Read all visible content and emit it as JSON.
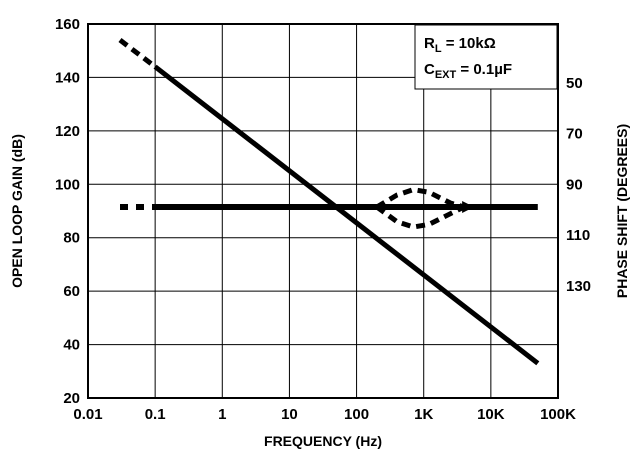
{
  "chart_data": {
    "type": "line",
    "title": "",
    "xlabel": "FREQUENCY (Hz)",
    "ylabel": "OPEN LOOP GAIN (dB)",
    "y2label": "PHASE SHIFT (DEGREES)",
    "x_scale": "log",
    "xlim": [
      0.01,
      100000
    ],
    "ylim": [
      20,
      160
    ],
    "grid": true,
    "x_ticks": [
      {
        "value": 0.01,
        "label": "0.01"
      },
      {
        "value": 0.1,
        "label": "0.1"
      },
      {
        "value": 1,
        "label": "1"
      },
      {
        "value": 10,
        "label": "10"
      },
      {
        "value": 100,
        "label": "100"
      },
      {
        "value": 1000,
        "label": "1K"
      },
      {
        "value": 10000,
        "label": "10K"
      },
      {
        "value": 100000,
        "label": "100K"
      }
    ],
    "y_ticks": [
      20,
      40,
      60,
      80,
      100,
      120,
      140,
      160
    ],
    "y2_ticks": [
      {
        "label": "50",
        "at_y": 138
      },
      {
        "label": "70",
        "at_y": 119
      },
      {
        "label": "90",
        "at_y": 100
      },
      {
        "label": "110",
        "at_y": 81
      },
      {
        "label": "130",
        "at_y": 62
      }
    ],
    "annotations": [
      {
        "main": "R",
        "sub": "L",
        "rest": " = 10kΩ"
      },
      {
        "main": "C",
        "sub": "EXT",
        "rest": " = 0.1µF"
      }
    ],
    "series": [
      {
        "kind": "gain",
        "solid": [
          [
            0.1,
            144
          ],
          [
            50000,
            33
          ]
        ],
        "dashed": [
          [
            0.03,
            154
          ],
          [
            0.1,
            144
          ]
        ]
      },
      {
        "kind": "phase",
        "solid": [
          [
            0.1,
            91.5
          ],
          [
            50000,
            91.5
          ]
        ],
        "dashed_lead": [
          [
            0.03,
            91.5
          ],
          [
            0.1,
            91.5
          ]
        ],
        "dashed_bump": [
          [
            200,
            91.5
          ],
          [
            400,
            96
          ],
          [
            700,
            98
          ],
          [
            1200,
            97
          ],
          [
            2500,
            93
          ],
          [
            4000,
            91.5
          ]
        ],
        "dashed_dip": [
          [
            200,
            91.5
          ],
          [
            400,
            86
          ],
          [
            700,
            84
          ],
          [
            1200,
            85
          ],
          [
            2500,
            89
          ],
          [
            4000,
            91.5
          ]
        ]
      }
    ]
  }
}
